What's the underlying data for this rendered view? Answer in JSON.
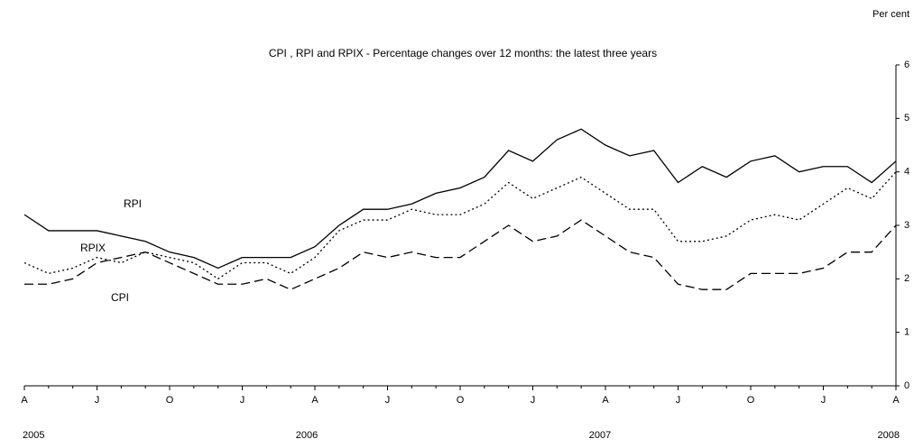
{
  "chart_data": {
    "type": "line",
    "title": "CPI , RPI and RPIX - Percentage changes over 12 months: the latest three years",
    "y_axis_label": "Per cent",
    "categories": [
      "A",
      null,
      null,
      "J",
      null,
      null,
      "O",
      null,
      null,
      "J",
      null,
      null,
      "A",
      null,
      null,
      "J",
      null,
      null,
      "O",
      null,
      null,
      "J",
      null,
      null,
      "A",
      null,
      null,
      "J",
      null,
      null,
      "O",
      null,
      null,
      "J",
      null,
      null,
      "A"
    ],
    "annotations": [
      "2005",
      "2006",
      "2007",
      "2008"
    ],
    "series": [
      {
        "name": "RPI",
        "color": "#000000",
        "dash": "solid",
        "values": [
          3.2,
          2.9,
          2.9,
          2.9,
          2.8,
          2.7,
          2.5,
          2.4,
          2.2,
          2.4,
          2.4,
          2.4,
          2.6,
          3.0,
          3.3,
          3.3,
          3.4,
          3.6,
          3.7,
          3.9,
          4.4,
          4.2,
          4.6,
          4.8,
          4.5,
          4.3,
          4.4,
          3.8,
          4.1,
          3.9,
          4.2,
          4.3,
          4.0,
          4.1,
          4.1,
          3.8,
          4.2
        ]
      },
      {
        "name": "RPIX",
        "color": "#000000",
        "dash": "dotted",
        "values": [
          2.3,
          2.1,
          2.2,
          2.4,
          2.3,
          2.5,
          2.4,
          2.3,
          2.0,
          2.3,
          2.3,
          2.1,
          2.4,
          2.9,
          3.1,
          3.1,
          3.3,
          3.2,
          3.2,
          3.4,
          3.8,
          3.5,
          3.7,
          3.9,
          3.6,
          3.3,
          3.3,
          2.7,
          2.7,
          2.8,
          3.1,
          3.2,
          3.1,
          3.4,
          3.7,
          3.5,
          4.0
        ]
      },
      {
        "name": "CPI",
        "color": "#000000",
        "dash": "dashed",
        "values": [
          1.9,
          1.9,
          2.0,
          2.3,
          2.4,
          2.5,
          2.3,
          2.1,
          1.9,
          1.9,
          2.0,
          1.8,
          2.0,
          2.2,
          2.5,
          2.4,
          2.5,
          2.4,
          2.4,
          2.7,
          3.0,
          2.7,
          2.8,
          3.1,
          2.8,
          2.5,
          2.4,
          1.9,
          1.8,
          1.8,
          2.1,
          2.1,
          2.1,
          2.2,
          2.5,
          2.5,
          3.0
        ]
      }
    ],
    "ylim": [
      0,
      6
    ],
    "yticks": [
      0,
      1,
      2,
      3,
      4,
      5,
      6
    ],
    "y_axis_side": "right",
    "grid": false
  }
}
